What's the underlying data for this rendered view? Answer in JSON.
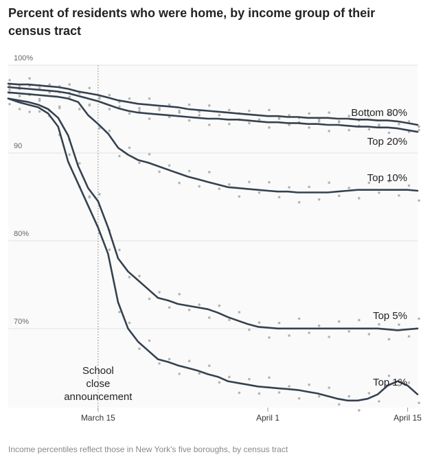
{
  "title": "Percent of residents who were home, by income group of their census tract",
  "footnote": "Income percentiles reflect those in New York's five boroughs, by census tract",
  "chart_data": {
    "type": "line",
    "title": "Percent of residents who were home, by income group of their census tract",
    "xlabel": "",
    "ylabel": "",
    "ylim": [
      61,
      100
    ],
    "x_axis": "day index (0 = March 6, 2020)",
    "x": [
      0,
      1,
      2,
      3,
      4,
      5,
      6,
      7,
      8,
      9,
      10,
      11,
      12,
      13,
      14,
      15,
      16,
      17,
      18,
      19,
      20,
      21,
      22,
      23,
      24,
      25,
      26,
      27,
      28,
      29,
      30,
      31,
      32,
      33,
      34,
      35,
      36,
      37,
      38,
      39,
      40,
      41
    ],
    "y_ticks": [
      {
        "value": 100,
        "label": "100%"
      },
      {
        "value": 90,
        "label": "90"
      },
      {
        "value": 80,
        "label": "80%"
      },
      {
        "value": 70,
        "label": "70%"
      }
    ],
    "x_ticks": [
      {
        "value": 9,
        "label": "March 15"
      },
      {
        "value": 26,
        "label": "April 1"
      },
      {
        "value": 40,
        "label": "April 15"
      }
    ],
    "annotation": {
      "x": 9,
      "lines": [
        "School",
        "close",
        "announcement"
      ]
    },
    "series": [
      {
        "name": "Bottom 80%",
        "label": "Bottom 80%",
        "values": [
          97.9,
          97.8,
          97.8,
          97.7,
          97.6,
          97.5,
          97.3,
          97.0,
          96.8,
          96.6,
          96.3,
          96.0,
          95.8,
          95.6,
          95.5,
          95.4,
          95.3,
          95.2,
          95.0,
          94.9,
          94.8,
          94.7,
          94.6,
          94.5,
          94.4,
          94.3,
          94.2,
          94.2,
          94.1,
          94.1,
          94.0,
          94.0,
          94.0,
          93.9,
          93.9,
          93.8,
          93.8,
          93.7,
          93.7,
          93.6,
          93.4,
          93.2
        ]
      },
      {
        "name": "Top 20%",
        "label": "Top 20%",
        "values": [
          97.5,
          97.4,
          97.3,
          97.2,
          97.1,
          97.0,
          96.8,
          96.5,
          96.2,
          95.9,
          95.5,
          95.1,
          94.8,
          94.6,
          94.5,
          94.4,
          94.3,
          94.2,
          94.1,
          94.0,
          93.9,
          93.9,
          93.8,
          93.8,
          93.7,
          93.6,
          93.5,
          93.5,
          93.4,
          93.4,
          93.3,
          93.3,
          93.2,
          93.2,
          93.1,
          93.0,
          93.0,
          92.9,
          92.9,
          92.8,
          92.6,
          92.4
        ]
      },
      {
        "name": "Top 10%",
        "label": "Top 10%",
        "values": [
          96.9,
          96.8,
          96.7,
          96.6,
          96.5,
          96.4,
          96.2,
          95.8,
          94.3,
          93.3,
          92.2,
          90.6,
          89.8,
          89.2,
          88.9,
          88.5,
          88.1,
          87.7,
          87.3,
          87.0,
          86.7,
          86.4,
          86.1,
          86.0,
          85.9,
          85.8,
          85.7,
          85.6,
          85.6,
          85.5,
          85.5,
          85.5,
          85.5,
          85.6,
          85.7,
          85.8,
          85.8,
          85.8,
          85.8,
          85.8,
          85.8,
          85.7
        ]
      },
      {
        "name": "Top 5%",
        "label": "Top 5%",
        "values": [
          96.2,
          96.0,
          95.8,
          95.5,
          95.0,
          94.0,
          92.0,
          88.5,
          86.0,
          84.5,
          81.5,
          78.0,
          76.5,
          75.5,
          74.5,
          73.5,
          73.2,
          72.8,
          72.6,
          72.4,
          72.2,
          71.8,
          71.3,
          70.9,
          70.5,
          70.2,
          70.1,
          70.0,
          70.0,
          70.0,
          70.0,
          70.0,
          70.0,
          70.0,
          70.0,
          70.0,
          70.0,
          70.0,
          69.9,
          69.8,
          69.9,
          70.0
        ]
      },
      {
        "name": "Top 1%",
        "label": "Top 1%",
        "values": [
          96.2,
          95.8,
          95.5,
          95.2,
          94.5,
          93.0,
          89.0,
          86.5,
          84.0,
          81.5,
          78.5,
          73.0,
          70.0,
          68.5,
          67.5,
          66.5,
          66.2,
          65.8,
          65.5,
          65.2,
          64.8,
          64.5,
          64.0,
          63.8,
          63.6,
          63.4,
          63.3,
          63.2,
          63.1,
          63.0,
          62.8,
          62.6,
          62.3,
          62.0,
          61.8,
          61.8,
          62.0,
          62.5,
          63.5,
          64.0,
          63.5,
          62.5
        ]
      }
    ]
  }
}
